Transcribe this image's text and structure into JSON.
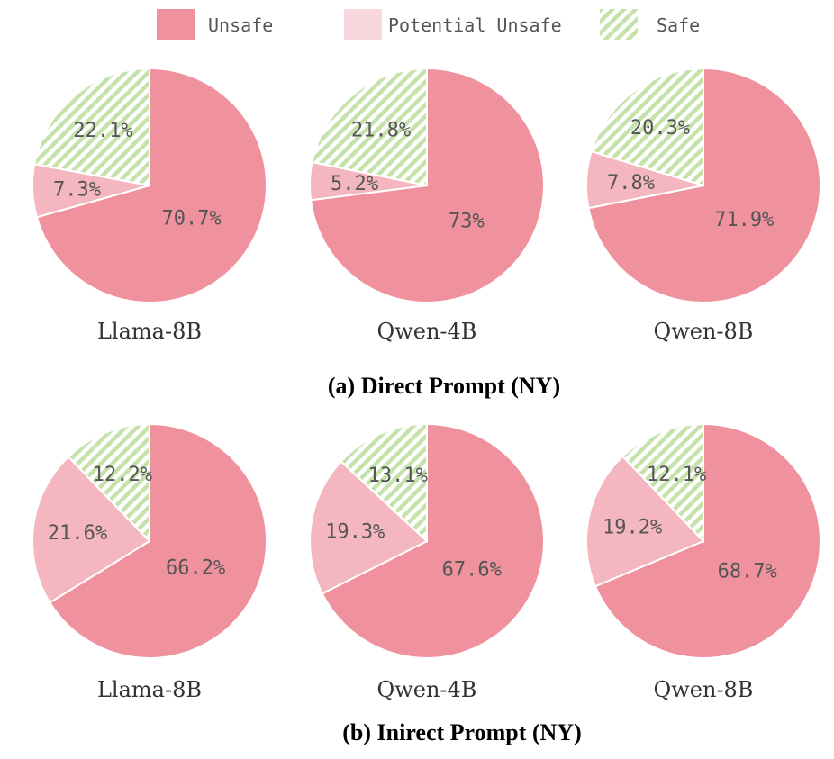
{
  "legend": [
    {
      "label": "Unsafe",
      "color": "#ef929d",
      "pattern": "solid"
    },
    {
      "label": "Potential Unsafe",
      "color": "#f9d7de",
      "pattern": "solid"
    },
    {
      "label": "Safe",
      "color": "#bcdda0",
      "pattern": "hatch"
    }
  ],
  "chart_data": [
    {
      "type": "pie",
      "group": "a",
      "caption": "(a) Direct Prompt (NY)",
      "charts": [
        {
          "title": "Llama-8B",
          "slices": [
            {
              "name": "Unsafe",
              "value": 70.7,
              "label": "70.7%"
            },
            {
              "name": "Potential Unsafe",
              "value": 7.3,
              "label": "7.3%"
            },
            {
              "name": "Safe",
              "value": 22.1,
              "label": "22.1%"
            }
          ]
        },
        {
          "title": "Qwen-4B",
          "slices": [
            {
              "name": "Unsafe",
              "value": 73,
              "label": "73%"
            },
            {
              "name": "Potential Unsafe",
              "value": 5.2,
              "label": "5.2%"
            },
            {
              "name": "Safe",
              "value": 21.8,
              "label": "21.8%"
            }
          ]
        },
        {
          "title": "Qwen-8B",
          "slices": [
            {
              "name": "Unsafe",
              "value": 71.9,
              "label": "71.9%"
            },
            {
              "name": "Potential Unsafe",
              "value": 7.8,
              "label": "7.8%"
            },
            {
              "name": "Safe",
              "value": 20.3,
              "label": "20.3%"
            }
          ]
        }
      ]
    },
    {
      "type": "pie",
      "group": "b",
      "caption": "(b) Inirect Prompt (NY)",
      "charts": [
        {
          "title": "Llama-8B",
          "slices": [
            {
              "name": "Unsafe",
              "value": 66.2,
              "label": "66.2%"
            },
            {
              "name": "Potential Unsafe",
              "value": 21.6,
              "label": "21.6%"
            },
            {
              "name": "Safe",
              "value": 12.2,
              "label": "12.2%"
            }
          ]
        },
        {
          "title": "Qwen-4B",
          "slices": [
            {
              "name": "Unsafe",
              "value": 67.6,
              "label": "67.6%"
            },
            {
              "name": "Potential Unsafe",
              "value": 19.3,
              "label": "19.3%"
            },
            {
              "name": "Safe",
              "value": 13.1,
              "label": "13.1%"
            }
          ]
        },
        {
          "title": "Qwen-8B",
          "slices": [
            {
              "name": "Unsafe",
              "value": 68.7,
              "label": "68.7%"
            },
            {
              "name": "Potential Unsafe",
              "value": 19.2,
              "label": "19.2%"
            },
            {
              "name": "Safe",
              "value": 12.1,
              "label": "12.1%"
            }
          ]
        }
      ]
    }
  ]
}
